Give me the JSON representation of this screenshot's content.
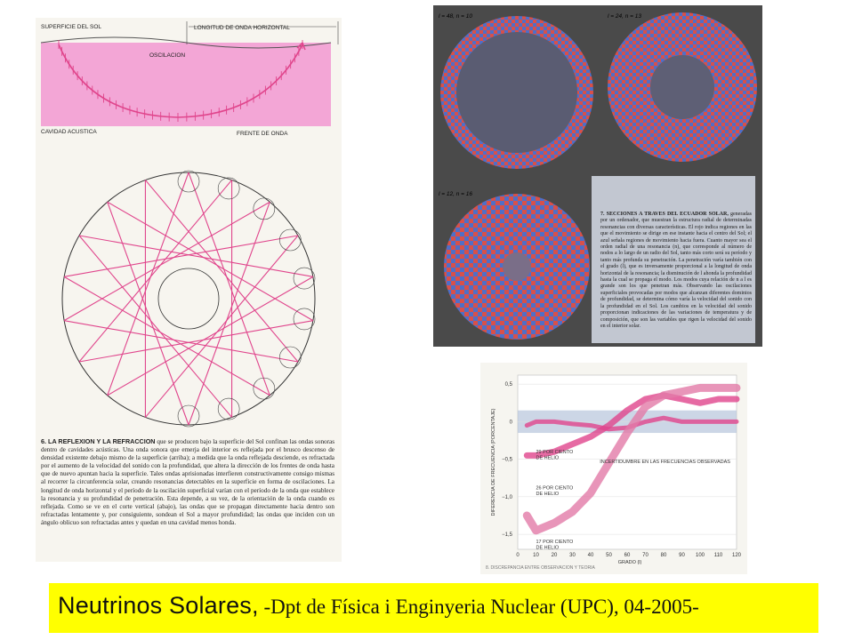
{
  "left_page": {
    "labels": {
      "surface": "SUPERFICIE DEL SOL",
      "wavelength": "LONGITUD DE ONDA HORIZONTAL",
      "oscillation": "OSCILACION",
      "cavity": "CAVIDAD ACUSTICA",
      "wavefront": "FRENTE DE ONDA"
    },
    "caption_lead": "6. LA REFLEXION Y LA REFRACCION",
    "caption_body": "que se producen bajo la superficie del Sol confinan las ondas sonoras dentro de cavidades acústicas. Una onda sonora que emerja del interior es reflejada por el brusco descenso de densidad existente debajo mismo de la superficie (arriba); a medida que la onda reflejada desciende, es refractada por el aumento de la velocidad del sonido con la profundidad, que altera la dirección de los frentes de onda hasta que de nuevo apuntan hacia la superficie. Tales ondas aprisionadas interfieren constructivamente consigo mismas al recorrer la circunferencia solar, creando resonancias detectables en la superficie en forma de oscilaciones. La longitud de onda horizontal y el período de la oscilación superficial varían con el período de la onda que establece la resonancia y su profundidad de penetración. Esta depende, a su vez, de la orientación de la onda cuando es reflejada. Como se ve en el corte vertical (abajo), las ondas que se propagan directamente hacia dentro son refractadas lentamente y, por consiguiente, sondean el Sol a mayor profundidad; las ondas que inciden con un ángulo oblicuo son refractadas antes y quedan en una cavidad menos honda."
  },
  "plate": {
    "panels": [
      {
        "label": "l = 48, n = 10"
      },
      {
        "label": "l = 24, n = 13"
      },
      {
        "label": "l = 12, n = 16"
      }
    ],
    "caption_lead": "7. SECCIONES A TRAVES DEL ECUADOR SOLAR,",
    "caption_body": "generadas por un ordenador, que muestran la estructura radial de determinadas resonancias con diversas características. El rojo indica regiones en las que el movimiento se dirige en ese instante hacia el centro del Sol; el azul señala regiones de movimiento hacia fuera. Cuanto mayor sea el orden radial de una resonancia (n), que corresponde al número de nodos a lo largo de un radio del Sol, tanto más corto será su período y tanto más profunda su penetración. La penetración varía también con el grado (l), que es inversamente proporcional a la longitud de onda horizontal de la resonancia; la disminución de l ahonda la profundidad hasta la cual se propaga el modo. Los modos cuya relación de n a l es grande son los que penetran más. Observando las oscilaciones superficiales provocadas por modos que alcanzan diferentes dominios de profundidad, se determina cómo varía la velocidad del sonido con la profundidad en el Sol. Los cambios en la velocidad del sonido proporcionan indicaciones de las variaciones de temperatura y de composición, que son las variables que rigen la velocidad del sonido en el interior solar."
  },
  "chart_data": {
    "type": "line",
    "title": "",
    "xlabel": "GRADO (l)",
    "ylabel": "DIFERENCIA DE FRECUENCIA (PORCENTAJE)",
    "x_ticks": [
      0,
      10,
      20,
      30,
      40,
      50,
      60,
      70,
      80,
      90,
      100,
      110,
      120
    ],
    "y_ticks": [
      0.5,
      0,
      -0.5,
      -1.0,
      -1.5
    ],
    "y_tick_labels": [
      "0,5",
      "0",
      "−0,5",
      "−1,0",
      "−1,5"
    ],
    "xlim": [
      0,
      120
    ],
    "ylim": [
      -1.7,
      0.62
    ],
    "uncertainty_band": [
      -0.15,
      0.15
    ],
    "series": [
      {
        "name": "29 POR CIENTO DE HELIO",
        "color": "#e0458c",
        "x": [
          5,
          10,
          20,
          30,
          40,
          50,
          60,
          70,
          80,
          90,
          100,
          110,
          120
        ],
        "y": [
          -0.05,
          0.0,
          0.0,
          -0.03,
          -0.05,
          -0.1,
          -0.08,
          0.0,
          0.05,
          0.0,
          0.0,
          0.0,
          0.0
        ]
      },
      {
        "name": "26 POR CIENTO DE HELIO",
        "color": "#e0458c",
        "x": [
          5,
          10,
          20,
          30,
          40,
          50,
          60,
          70,
          80,
          90,
          100,
          110,
          120
        ],
        "y": [
          -0.45,
          -0.45,
          -0.4,
          -0.3,
          -0.2,
          -0.05,
          0.15,
          0.3,
          0.35,
          0.3,
          0.25,
          0.3,
          0.3
        ]
      },
      {
        "name": "17 POR CIENTO DE HELIO",
        "color": "#e27aa8",
        "x": [
          5,
          10,
          20,
          30,
          40,
          50,
          60,
          70,
          80,
          90,
          100,
          110,
          120
        ],
        "y": [
          -1.25,
          -1.45,
          -1.35,
          -1.2,
          -0.95,
          -0.55,
          -0.15,
          0.2,
          0.35,
          0.4,
          0.45,
          0.45,
          0.45
        ]
      }
    ],
    "annotations": {
      "uncertainty": "INCERTIDUMBRE EN LAS FRECUENCIAS OBSERVADAS",
      "s29": "29 POR CIENTO\nDE HELIO",
      "s26": "26 POR CIENTO\nDE HELIO",
      "s17": "17 POR CIENTO\nDE HELIO"
    },
    "footer_text": "8. DISCREPANCIA ENTRE OBSERVACION Y TEORIA"
  },
  "footer": {
    "title": "Neutrinos Solares,",
    "subtitle": "  -Dpt de Física i  Enginyeria Nuclear  (UPC), 04-2005-"
  },
  "colors": {
    "pink": "#e0458c",
    "pink_fill": "#f3a6d6",
    "footer_bg": "#ffff00",
    "red_mode": "#d8504a",
    "blue_mode": "#4f6fc8"
  }
}
